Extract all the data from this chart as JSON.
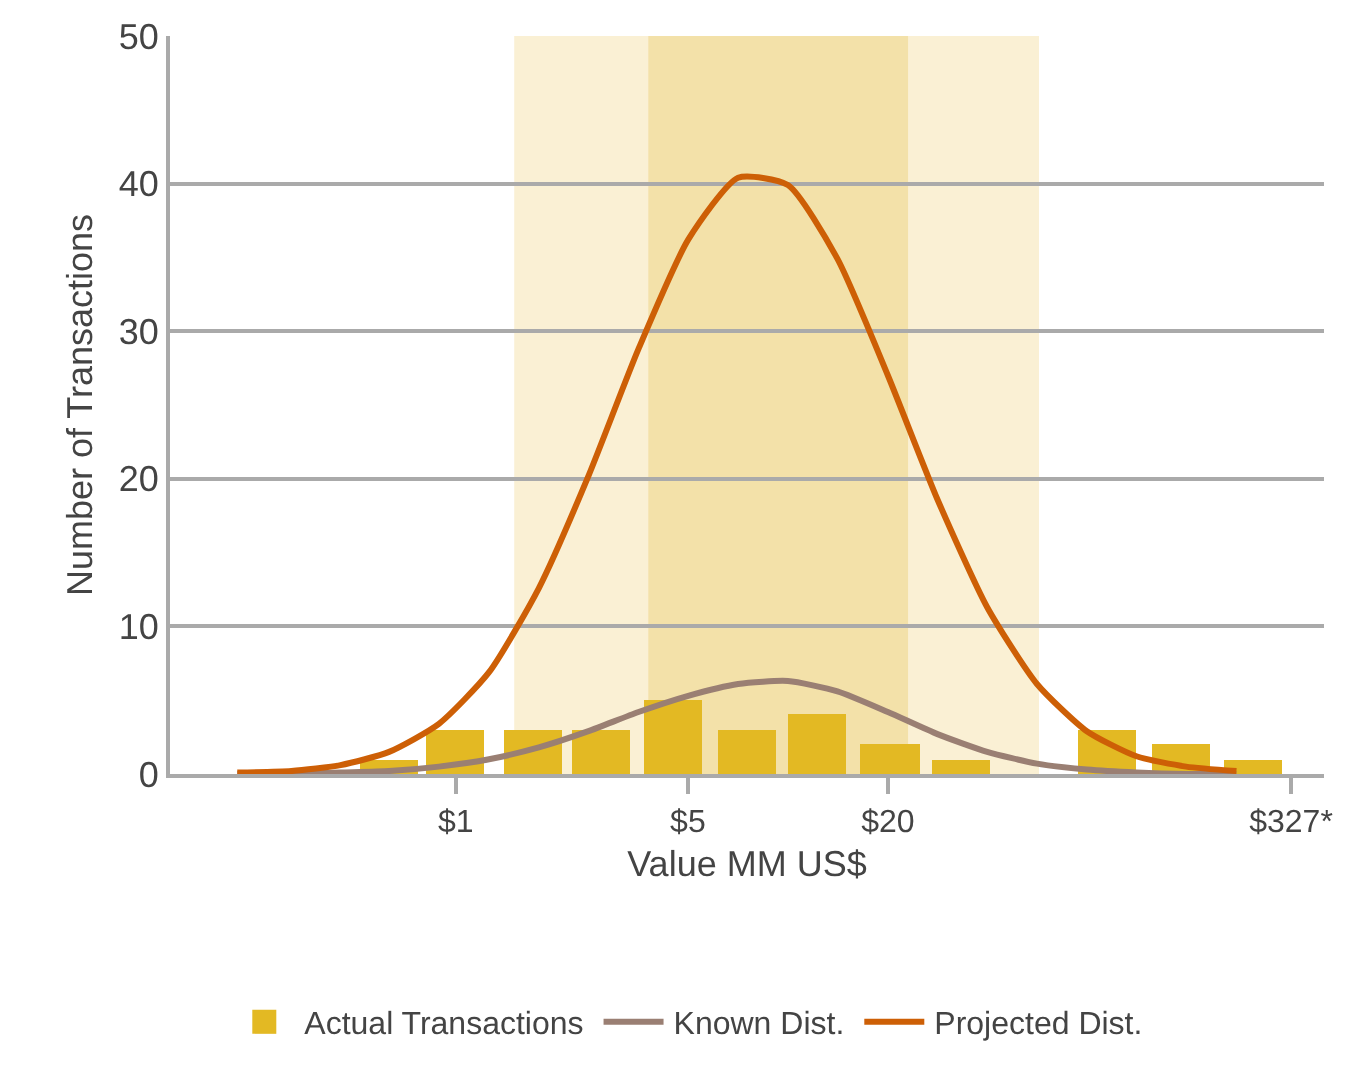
{
  "chart_data": {
    "type": "bar",
    "xlabel": "Value MM US$",
    "ylabel": "Number of Transactions",
    "log": "x",
    "xlim": [
      0.138,
      411
    ],
    "xticks": [
      {
        "value": 1,
        "label": "$1"
      },
      {
        "value": 5,
        "label": "$5"
      },
      {
        "value": 20,
        "label": "$20"
      },
      {
        "value": 327,
        "label": "$327*"
      }
    ],
    "ylim": [
      0,
      50
    ],
    "yticks": [
      0,
      10,
      20,
      30,
      40,
      50
    ],
    "grid": "y",
    "legend": "bottom",
    "bands": [
      {
        "axis": "x",
        "from": 1.5,
        "to": 57,
        "color": "#faf0d4"
      },
      {
        "axis": "x",
        "from": 3.8,
        "to": 23,
        "color": "#f3e1a9"
      }
    ],
    "series": [
      {
        "name": "Actual Transactions",
        "color": "#e3b923",
        "x": [
          0.63,
          1.0,
          1.7,
          2.75,
          4.5,
          7.5,
          12.3,
          20.3,
          33,
          91,
          152,
          250
        ],
        "values": [
          1,
          3,
          3,
          3,
          5,
          3,
          4,
          2,
          1,
          3,
          2,
          1
        ]
      },
      {
        "name": "Known Dist.",
        "type": "line",
        "color": "#9a7f73",
        "x": [
          0.22,
          0.32,
          0.45,
          0.63,
          0.89,
          1.26,
          1.78,
          2.51,
          3.55,
          5.01,
          7.08,
          10,
          14.1,
          20,
          28.2,
          39.8,
          56.2,
          79.4,
          112,
          158,
          224
        ],
        "values": [
          0,
          0,
          0.1,
          0.2,
          0.5,
          1.0,
          1.8,
          2.9,
          4.2,
          5.3,
          6.1,
          6.3,
          5.6,
          4.2,
          2.7,
          1.5,
          0.7,
          0.3,
          0.1,
          0,
          0
        ]
      },
      {
        "name": "Projected Dist.",
        "type": "line",
        "color": "#cd5f06",
        "x": [
          0.22,
          0.32,
          0.45,
          0.63,
          0.89,
          1.26,
          1.78,
          2.51,
          3.55,
          5.01,
          7.08,
          10,
          14.1,
          20,
          28.2,
          39.8,
          56.2,
          79.4,
          112,
          158,
          224
        ],
        "values": [
          0.1,
          0.2,
          0.6,
          1.5,
          3.4,
          6.9,
          12.6,
          20.2,
          28.8,
          36.2,
          40.4,
          39.9,
          34.9,
          27.0,
          18.6,
          11.3,
          6.1,
          2.9,
          1.2,
          0.5,
          0.2
        ]
      }
    ]
  }
}
